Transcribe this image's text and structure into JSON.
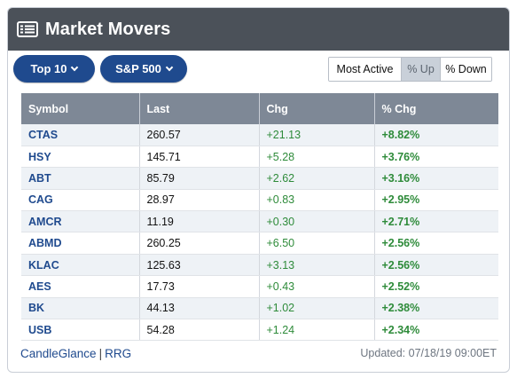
{
  "header": {
    "title": "Market Movers",
    "icon": "list-table-icon"
  },
  "controls": {
    "count_label": "Top 10",
    "index_label": "S&P 500",
    "toggle_options": [
      "Most Active",
      "% Up",
      "% Down"
    ],
    "active_toggle": "% Up"
  },
  "table": {
    "columns": [
      "Symbol",
      "Last",
      "Chg",
      "% Chg"
    ],
    "rows": [
      [
        "CTAS",
        "260.57",
        "+21.13",
        "+8.82%"
      ],
      [
        "HSY",
        "145.71",
        "+5.28",
        "+3.76%"
      ],
      [
        "ABT",
        "85.79",
        "+2.62",
        "+3.16%"
      ],
      [
        "CAG",
        "28.97",
        "+0.83",
        "+2.95%"
      ],
      [
        "AMCR",
        "11.19",
        "+0.30",
        "+2.71%"
      ],
      [
        "ABMD",
        "260.25",
        "+6.50",
        "+2.56%"
      ],
      [
        "KLAC",
        "125.63",
        "+3.13",
        "+2.56%"
      ],
      [
        "AES",
        "17.73",
        "+0.43",
        "+2.52%"
      ],
      [
        "BK",
        "44.13",
        "+1.02",
        "+2.38%"
      ],
      [
        "USB",
        "54.28",
        "+1.24",
        "+2.34%"
      ]
    ]
  },
  "footer": {
    "link1": "CandleGlance",
    "separator": "|",
    "link2": "RRG",
    "updated": "Updated: 07/18/19 09:00ET"
  },
  "colors": {
    "header_bg": "#4b5159",
    "pill_bg": "#1f4a8e",
    "table_header_bg": "#7e8896",
    "positive": "#2e8b3a",
    "symbol": "#1f4a8e"
  }
}
